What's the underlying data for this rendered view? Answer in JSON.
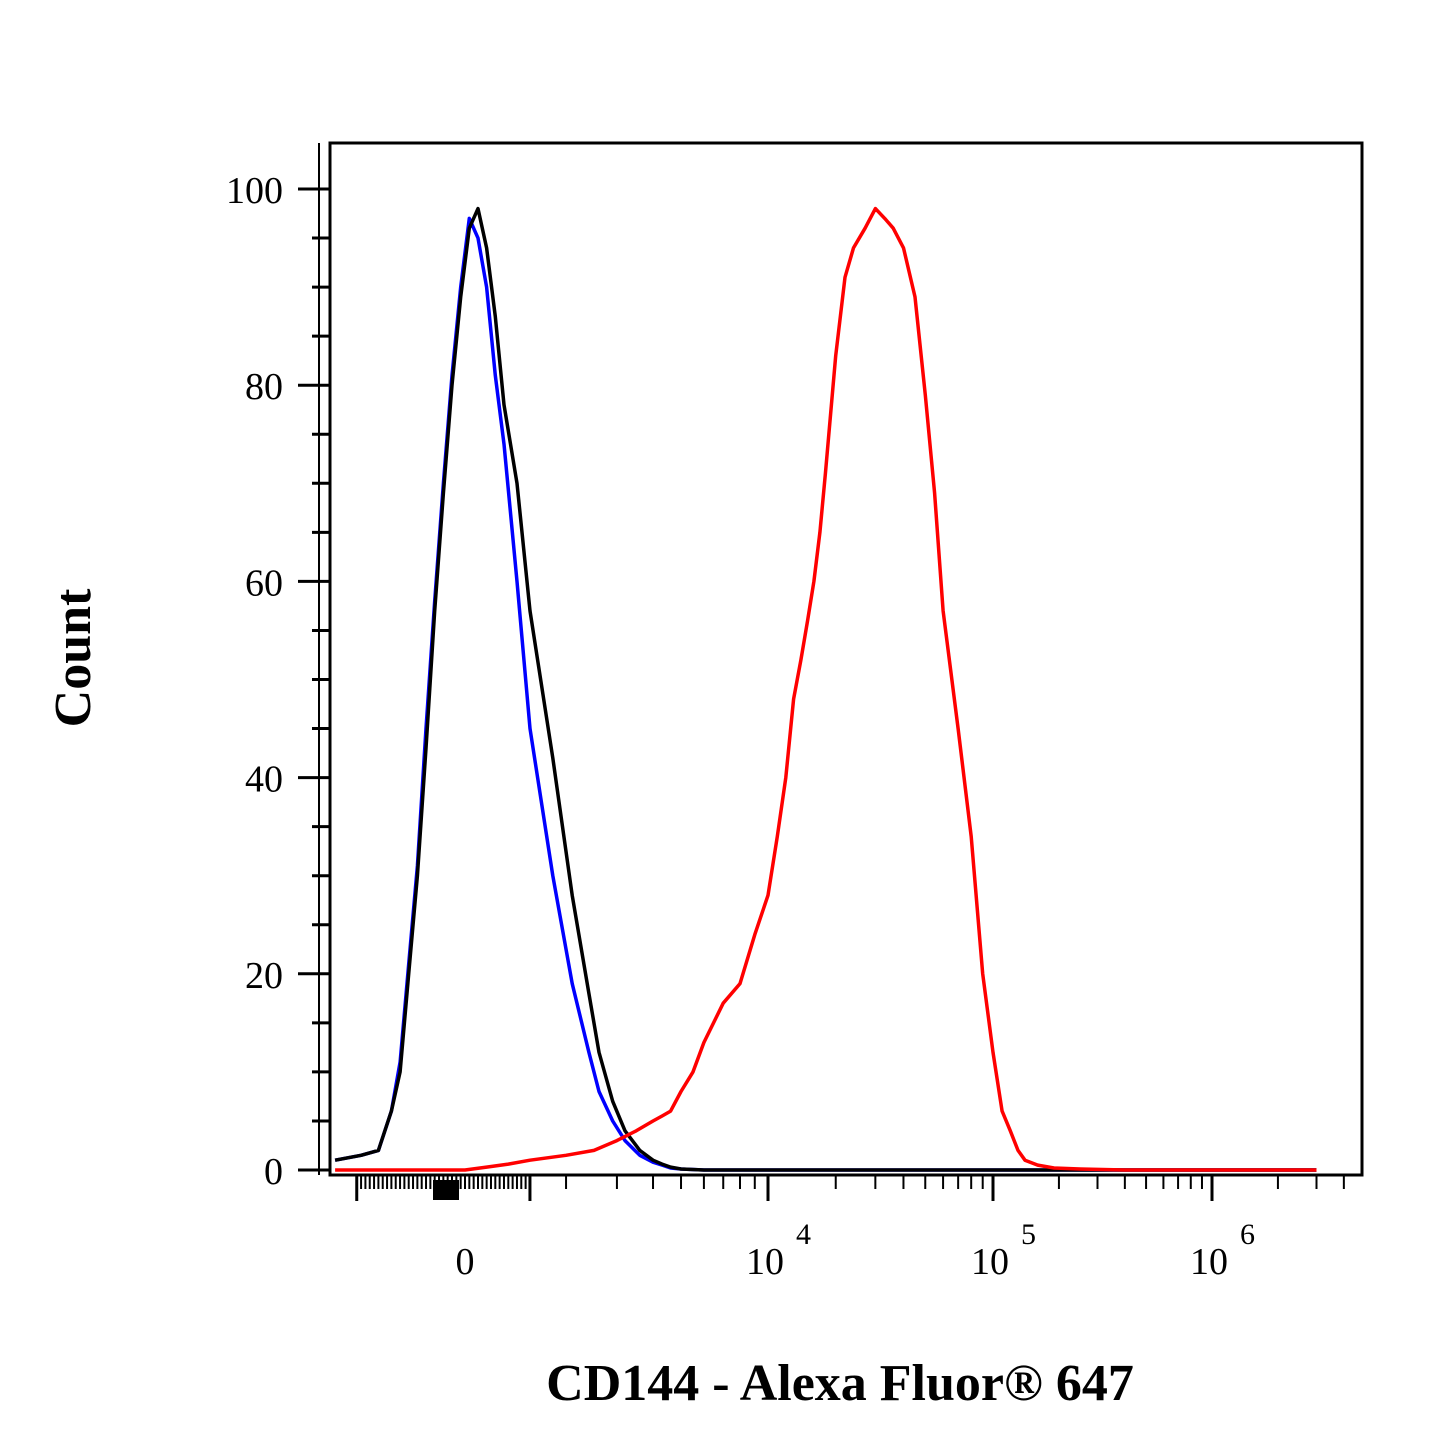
{
  "chart_data": {
    "type": "line",
    "title": "",
    "xlabel": "CD144 - Alexa Fluor® 647",
    "ylabel": "Count",
    "y_axis": {
      "range": [
        0,
        100
      ],
      "ticks": [
        0,
        20,
        40,
        60,
        80,
        100
      ],
      "tick_labels": [
        "0",
        "20",
        "40",
        "60",
        "80",
        "100"
      ]
    },
    "x_axis": {
      "scale": "biexponential",
      "tick_labels": [
        {
          "base": "0",
          "exp": "",
          "value": 0
        },
        {
          "base": "10",
          "exp": "4",
          "value": 10000
        },
        {
          "base": "10",
          "exp": "5",
          "value": 100000
        },
        {
          "base": "10",
          "exp": "6",
          "value": 1000000
        }
      ]
    },
    "grid": false,
    "series": [
      {
        "color": "#0000ff",
        "x": [
          -3000,
          -2400,
          -2000,
          -1700,
          -1500,
          -1300,
          -1100,
          -900,
          -700,
          -500,
          -300,
          -100,
          100,
          300,
          500,
          700,
          900,
          1200,
          1500,
          1800,
          2100,
          2400,
          2600,
          2900,
          3200,
          3600,
          4000,
          4300,
          4600,
          5000,
          6000,
          8000,
          12000,
          30000,
          100000,
          300000,
          1000000,
          3000000
        ],
        "y": [
          1,
          1.5,
          2,
          6,
          11,
          21,
          31,
          45,
          58,
          70,
          81,
          90,
          97,
          95,
          90,
          81,
          74,
          60,
          45,
          30,
          19,
          12,
          8,
          5,
          3,
          1.5,
          0.8,
          0.5,
          0.2,
          0.1,
          0,
          0,
          0,
          0,
          0,
          0,
          0,
          0
        ]
      },
      {
        "color": "#000000",
        "x": [
          -3000,
          -2400,
          -2000,
          -1700,
          -1500,
          -1300,
          -1100,
          -900,
          -700,
          -500,
          -300,
          -100,
          100,
          300,
          500,
          700,
          900,
          1200,
          1500,
          1800,
          2100,
          2400,
          2600,
          2900,
          3200,
          3600,
          4000,
          4300,
          4600,
          5000,
          6000,
          8000,
          12000,
          30000,
          100000,
          300000,
          1000000,
          3000000
        ],
        "y": [
          1,
          1.5,
          2,
          6,
          10,
          20,
          30,
          43,
          57,
          69,
          80,
          89,
          96,
          98,
          94,
          87,
          78,
          70,
          57,
          42,
          28,
          18,
          12,
          7,
          4,
          2,
          1,
          0.6,
          0.3,
          0.1,
          0,
          0,
          0,
          0,
          0,
          0,
          0,
          0
        ]
      },
      {
        "color": "#ff0000",
        "x": [
          -3000,
          -1000,
          0,
          500,
          1000,
          1500,
          2000,
          2500,
          3000,
          3500,
          4000,
          4300,
          4600,
          5000,
          5500,
          6000,
          7000,
          8000,
          9000,
          10000,
          11000,
          12000,
          13000,
          14000,
          15000,
          16000,
          17000,
          18000,
          20000,
          22000,
          24000,
          27000,
          30000,
          33000,
          36000,
          40000,
          45000,
          50000,
          55000,
          60000,
          70000,
          80000,
          90000,
          100000,
          110000,
          120000,
          130000,
          140000,
          160000,
          190000,
          250000,
          400000,
          1000000,
          3000000
        ],
        "y": [
          0,
          0,
          0,
          0.3,
          0.6,
          1,
          1.5,
          2,
          3,
          4,
          5,
          5.5,
          6,
          8,
          10,
          13,
          17,
          19,
          24,
          28,
          34,
          40,
          48,
          52,
          56,
          60,
          65,
          71,
          83,
          91,
          94,
          96,
          98,
          97,
          96,
          94,
          89,
          79,
          69,
          57,
          45,
          34,
          20,
          12,
          6,
          4,
          2,
          1,
          0.5,
          0.2,
          0.1,
          0,
          0,
          0
        ]
      }
    ]
  }
}
